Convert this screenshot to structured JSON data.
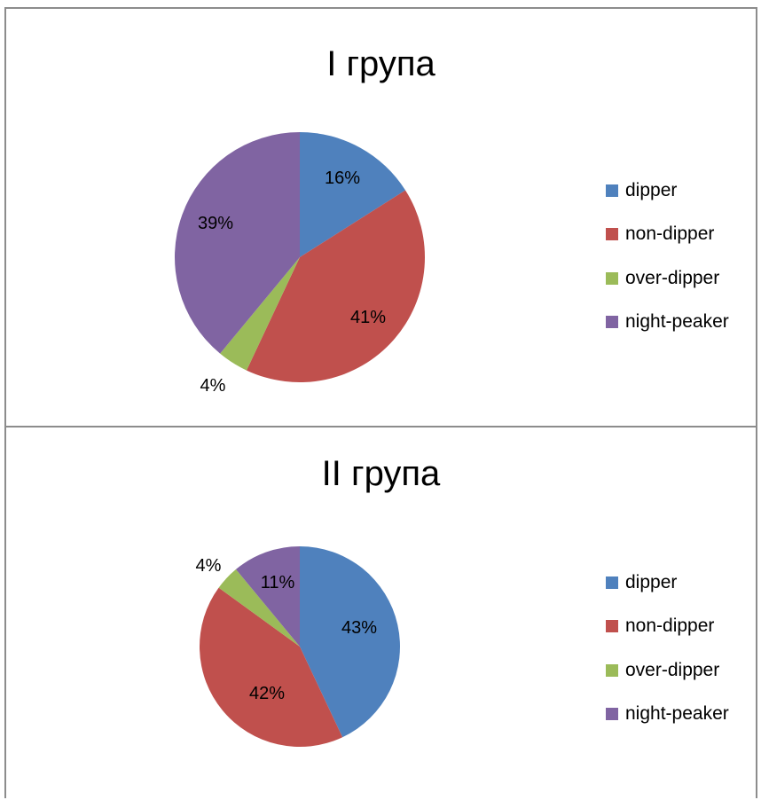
{
  "chart_data": [
    {
      "type": "pie",
      "title": "I група",
      "categories": [
        "dipper",
        "non-dipper",
        "over-dipper",
        "night-peaker"
      ],
      "values": [
        16,
        41,
        4,
        39
      ],
      "labels": [
        "16%",
        "41%",
        "4%",
        "39%"
      ],
      "colors": [
        "#4f81bd",
        "#c0504d",
        "#9bbb59",
        "#8064a2"
      ],
      "legend_position": "right"
    },
    {
      "type": "pie",
      "title": "II група",
      "categories": [
        "dipper",
        "non-dipper",
        "over-dipper",
        "night-peaker"
      ],
      "values": [
        43,
        42,
        4,
        11
      ],
      "labels": [
        "43%",
        "42%",
        "4%",
        "11%"
      ],
      "colors": [
        "#4f81bd",
        "#c0504d",
        "#9bbb59",
        "#8064a2"
      ],
      "legend_position": "right"
    }
  ]
}
